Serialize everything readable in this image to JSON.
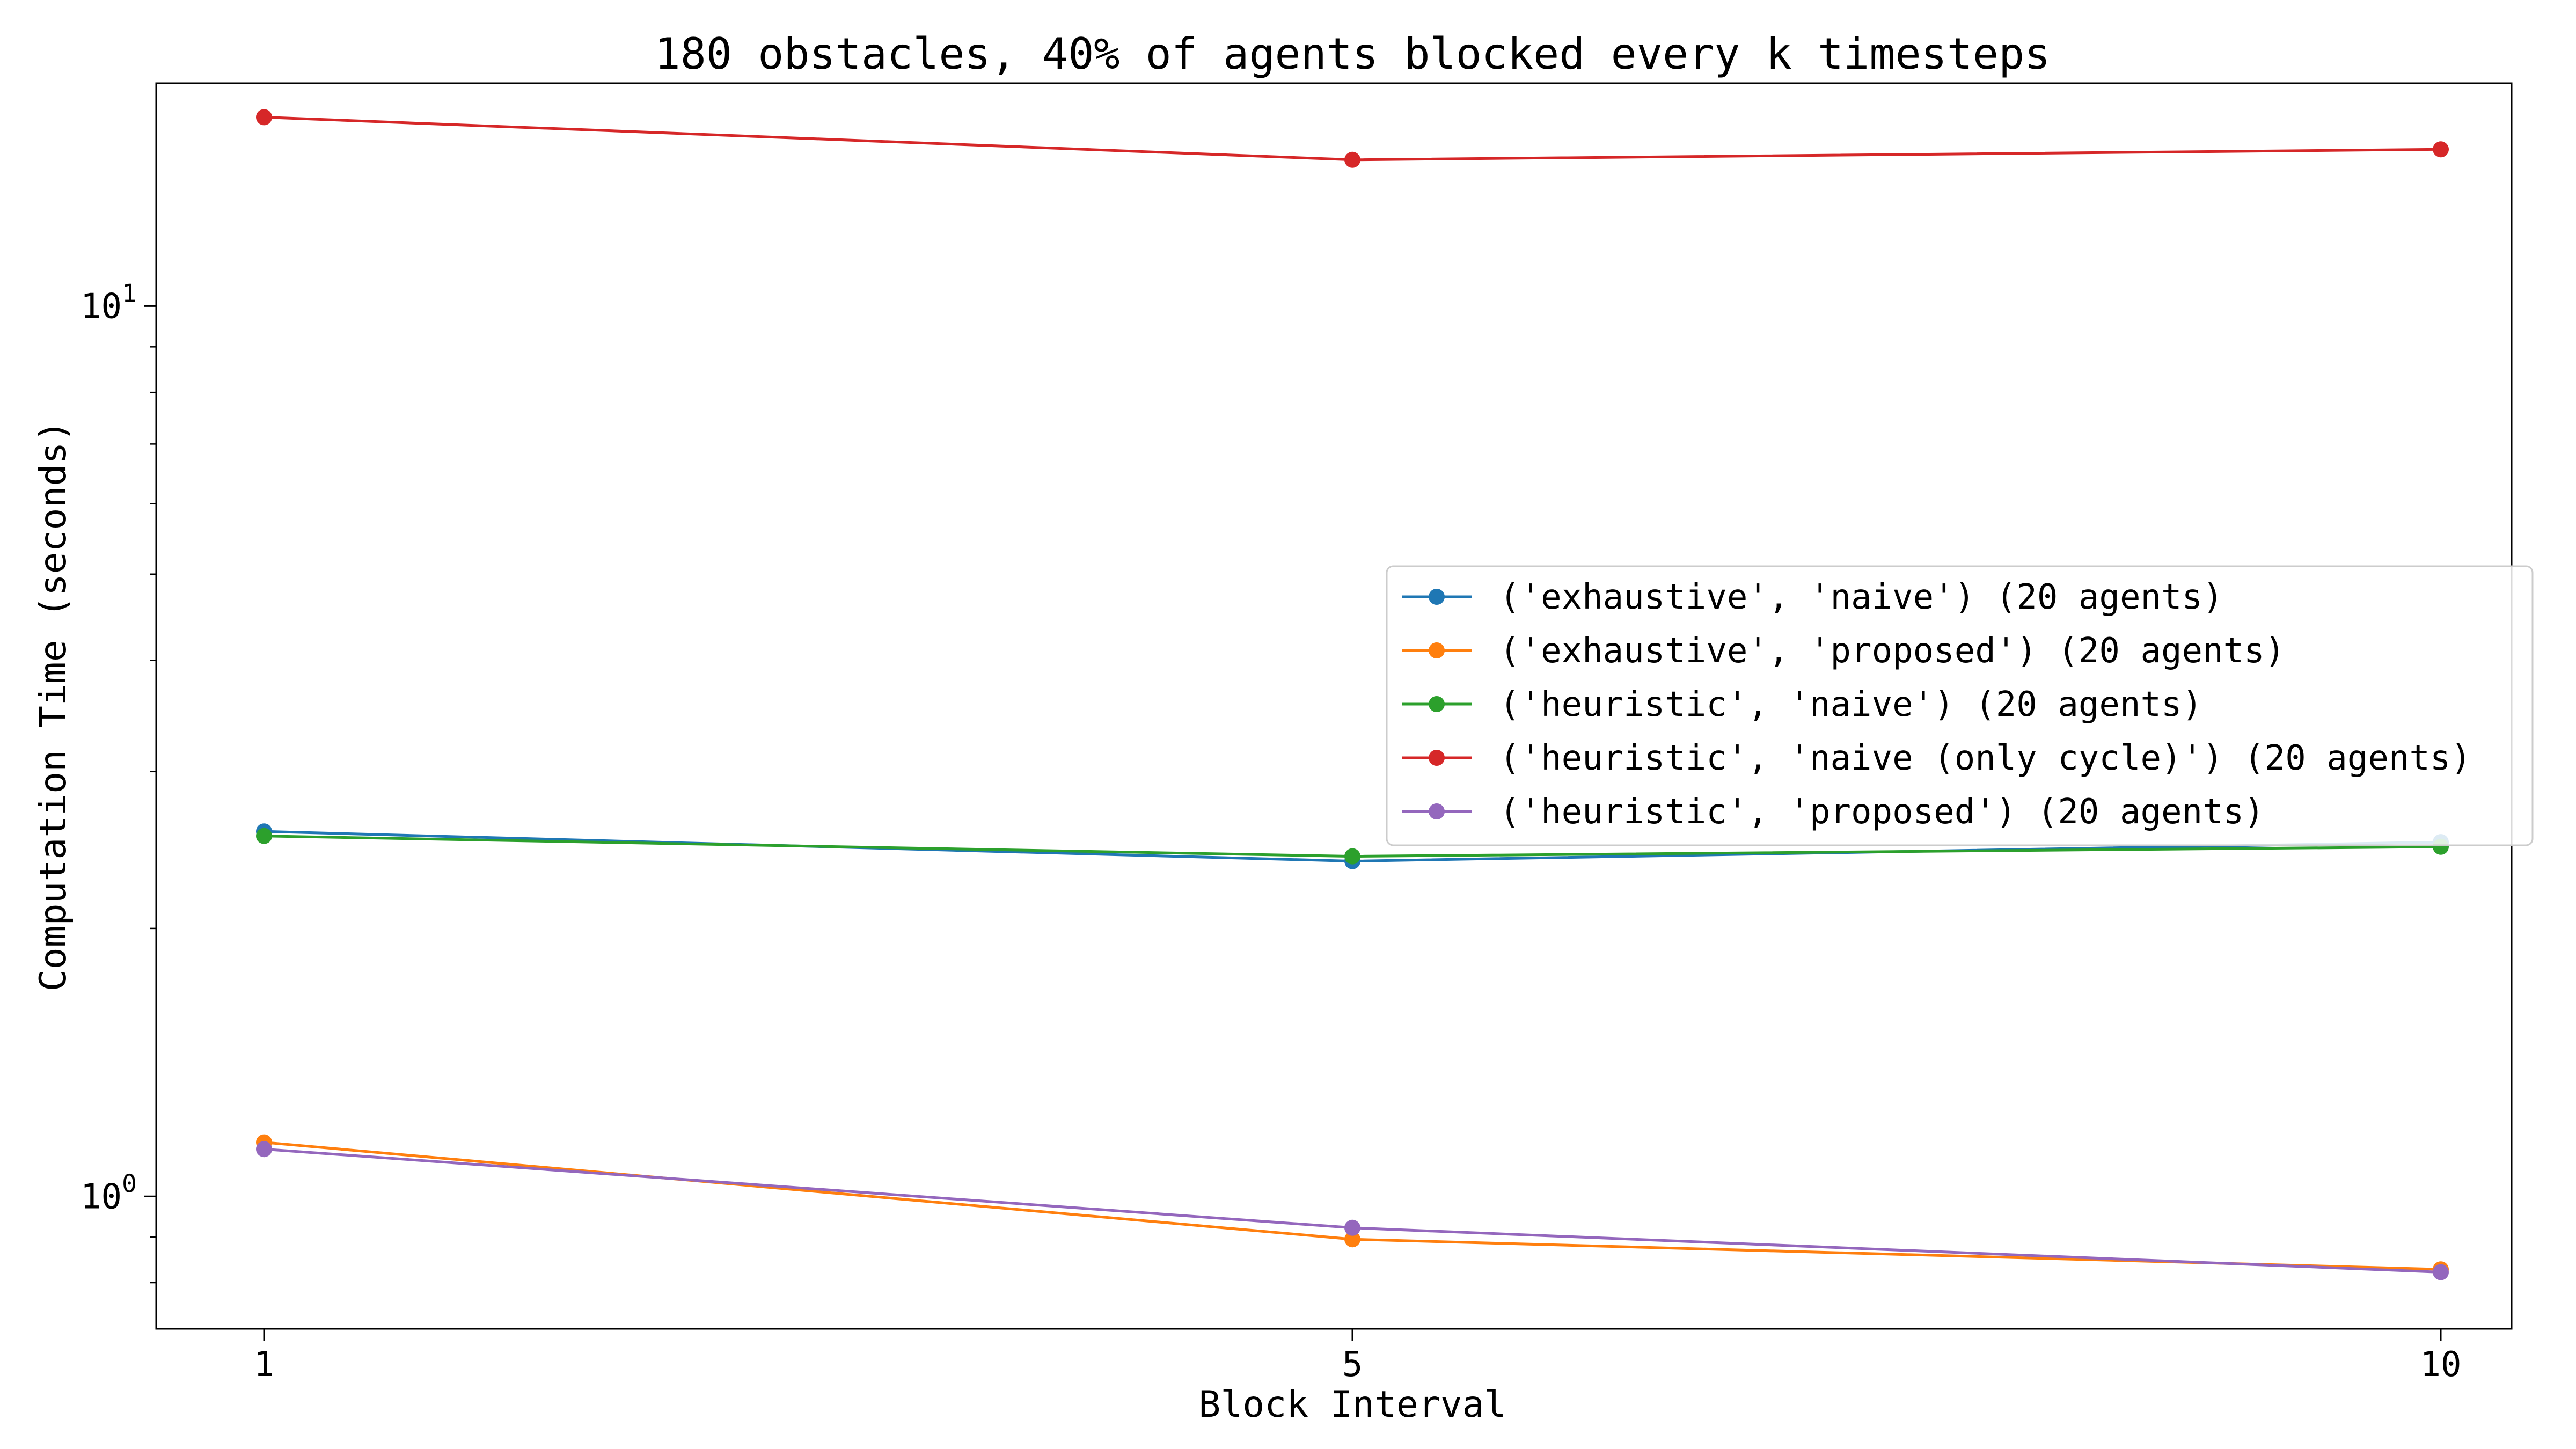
{
  "chart_data": {
    "type": "line",
    "title": "180 obstacles, 40% of agents blocked every k timesteps",
    "xlabel": "Block Interval",
    "ylabel": "Computation Time (seconds)",
    "x": [
      1,
      5,
      10
    ],
    "x_tick_labels": [
      "1",
      "5",
      "10"
    ],
    "y_scale": "log",
    "ylim": [
      0.71,
      17.8
    ],
    "y_major_ticks": [
      {
        "value": 1,
        "base": "10",
        "exp": "0"
      },
      {
        "value": 10,
        "base": "10",
        "exp": "1"
      }
    ],
    "y_minor_ticks": [
      0.8,
      0.9,
      2,
      3,
      4,
      5,
      6,
      7,
      8,
      9
    ],
    "grid": false,
    "legend_position": "center-right",
    "series": [
      {
        "name": "('exhaustive', 'naive') (20 agents)",
        "color": "#1f77b4",
        "values": [
          2.57,
          2.38,
          2.5
        ]
      },
      {
        "name": "('exhaustive', 'proposed') (20 agents)",
        "color": "#ff7f0e",
        "values": [
          1.15,
          0.895,
          0.828
        ]
      },
      {
        "name": "('heuristic', 'naive') (20 agents)",
        "color": "#2ca02c",
        "values": [
          2.54,
          2.41,
          2.47
        ]
      },
      {
        "name": "('heuristic', 'naive (only cycle)') (20 agents)",
        "color": "#d62728",
        "values": [
          16.3,
          14.6,
          15.0
        ]
      },
      {
        "name": "('heuristic', 'proposed') (20 agents)",
        "color": "#9467bd",
        "values": [
          1.13,
          0.922,
          0.822
        ]
      }
    ]
  }
}
